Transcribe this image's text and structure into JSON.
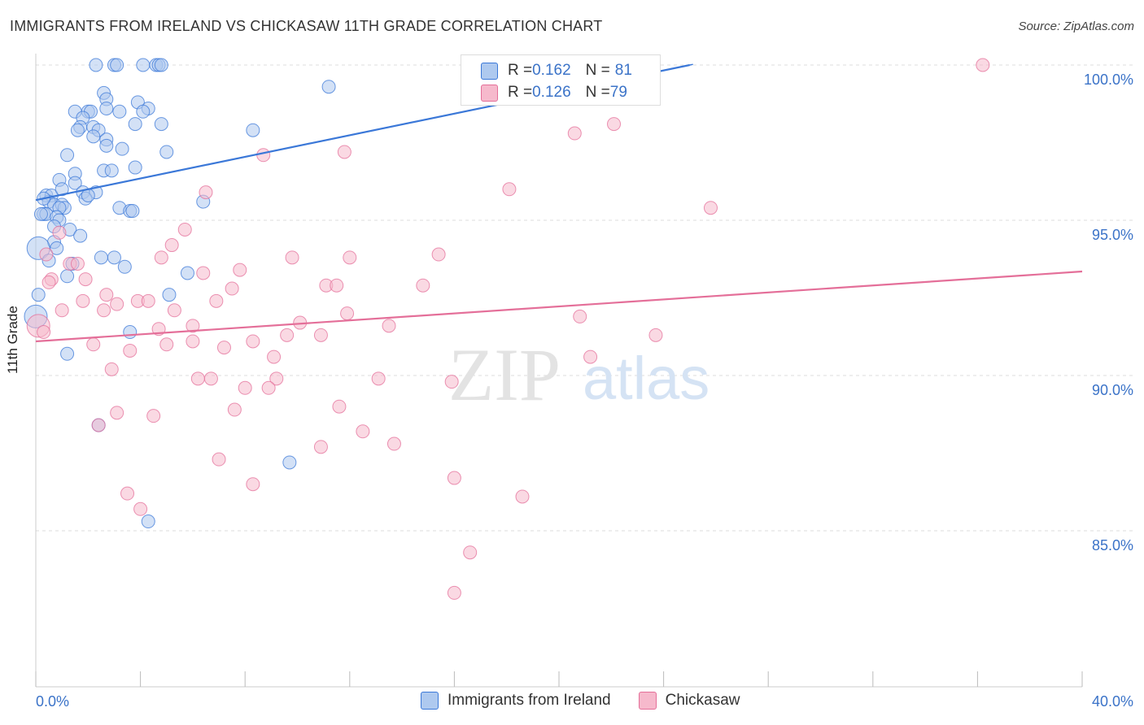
{
  "title": "IMMIGRANTS FROM IRELAND VS CHICKASAW 11TH GRADE CORRELATION CHART",
  "source": "Source: ZipAtlas.com",
  "watermark": {
    "zip": "ZIP",
    "atlas": "atlas"
  },
  "legend_top": {
    "rows": [
      {
        "r_label": "R = ",
        "r_value": "0.162",
        "n_label": "N = ",
        "n_value": "81",
        "color": "#aec9ef"
      },
      {
        "r_label": "R = ",
        "r_value": "0.126",
        "n_label": "N = ",
        "n_value": "79",
        "color": "#f6b9cc"
      }
    ]
  },
  "legend_bottom": [
    {
      "label": "Immigrants from Ireland",
      "color": "#aec9ef"
    },
    {
      "label": "Chickasaw",
      "color": "#f6b9cc"
    }
  ],
  "chart_data": {
    "type": "scatter",
    "title": "IMMIGRANTS FROM IRELAND VS CHICKASAW 11TH GRADE CORRELATION CHART",
    "xlabel": "",
    "ylabel": "11th Grade",
    "x_ticks": [
      "0.0%",
      "40.0%"
    ],
    "y_ticks": [
      "100.0%",
      "95.0%",
      "90.0%",
      "85.0%"
    ],
    "xlim": [
      0,
      40
    ],
    "ylim": [
      80.4,
      100.9
    ],
    "grid": true,
    "legend": "bottom-center",
    "series": [
      {
        "name": "Immigrants from Ireland",
        "color": "#3b78d8",
        "fill": "#aec9ef",
        "trend": {
          "x": [
            0,
            25
          ],
          "y": [
            95.65,
            100.0
          ]
        },
        "points": [
          [
            2.3,
            100
          ],
          [
            3.0,
            100
          ],
          [
            3.1,
            100
          ],
          [
            4.1,
            100
          ],
          [
            4.6,
            100
          ],
          [
            4.7,
            100
          ],
          [
            4.8,
            100
          ],
          [
            11.2,
            99.3
          ],
          [
            2.6,
            99.1
          ],
          [
            2.7,
            98.9
          ],
          [
            3.9,
            98.8
          ],
          [
            1.5,
            98.5
          ],
          [
            2.0,
            98.5
          ],
          [
            2.1,
            98.5
          ],
          [
            3.2,
            98.5
          ],
          [
            2.7,
            98.6
          ],
          [
            4.3,
            98.6
          ],
          [
            4.1,
            98.5
          ],
          [
            1.8,
            98.3
          ],
          [
            1.7,
            98.0
          ],
          [
            2.2,
            98.0
          ],
          [
            2.4,
            97.9
          ],
          [
            1.6,
            97.9
          ],
          [
            3.8,
            98.1
          ],
          [
            4.8,
            98.1
          ],
          [
            8.3,
            97.9
          ],
          [
            2.2,
            97.7
          ],
          [
            2.7,
            97.6
          ],
          [
            2.7,
            97.4
          ],
          [
            3.3,
            97.3
          ],
          [
            5.0,
            97.2
          ],
          [
            1.2,
            97.1
          ],
          [
            3.8,
            96.7
          ],
          [
            2.6,
            96.6
          ],
          [
            2.9,
            96.6
          ],
          [
            1.5,
            96.5
          ],
          [
            0.9,
            96.3
          ],
          [
            1.5,
            96.2
          ],
          [
            1.8,
            95.9
          ],
          [
            2.3,
            95.9
          ],
          [
            0.4,
            95.8
          ],
          [
            0.6,
            95.8
          ],
          [
            1.9,
            95.7
          ],
          [
            6.4,
            95.6
          ],
          [
            0.5,
            95.6
          ],
          [
            0.7,
            95.5
          ],
          [
            1.0,
            95.5
          ],
          [
            1.1,
            95.4
          ],
          [
            0.9,
            95.4
          ],
          [
            3.2,
            95.4
          ],
          [
            3.6,
            95.3
          ],
          [
            3.7,
            95.3
          ],
          [
            0.3,
            95.2
          ],
          [
            0.4,
            95.2
          ],
          [
            0.8,
            95.1
          ],
          [
            0.9,
            95.0
          ],
          [
            0.7,
            94.8
          ],
          [
            1.3,
            94.7
          ],
          [
            1.7,
            94.5
          ],
          [
            0.7,
            94.3
          ],
          [
            0.1,
            94.1
          ],
          [
            0.8,
            94.1
          ],
          [
            2.5,
            93.8
          ],
          [
            3.0,
            93.8
          ],
          [
            1.4,
            93.6
          ],
          [
            3.4,
            93.5
          ],
          [
            5.8,
            93.3
          ],
          [
            1.2,
            93.2
          ],
          [
            0.1,
            92.6
          ],
          [
            5.1,
            92.6
          ],
          [
            0.0,
            91.9
          ],
          [
            3.6,
            91.4
          ],
          [
            1.2,
            90.7
          ],
          [
            2.4,
            88.4
          ],
          [
            9.7,
            87.2
          ],
          [
            4.3,
            85.3
          ],
          [
            0.2,
            95.2
          ],
          [
            0.3,
            95.7
          ],
          [
            1.0,
            96.0
          ],
          [
            2.0,
            95.8
          ],
          [
            0.5,
            93.7
          ]
        ]
      },
      {
        "name": "Chickasaw",
        "color": "#e46f99",
        "fill": "#f6b9cc",
        "trend": {
          "x": [
            0,
            40
          ],
          "y": [
            91.1,
            93.35
          ]
        },
        "points": [
          [
            36.2,
            100
          ],
          [
            22.1,
            98.1
          ],
          [
            20.6,
            97.8
          ],
          [
            8.7,
            97.1
          ],
          [
            11.8,
            97.2
          ],
          [
            6.5,
            95.9
          ],
          [
            18.1,
            96.0
          ],
          [
            25.8,
            95.4
          ],
          [
            5.7,
            94.7
          ],
          [
            0.9,
            94.6
          ],
          [
            5.2,
            94.2
          ],
          [
            15.4,
            93.9
          ],
          [
            4.8,
            93.8
          ],
          [
            9.8,
            93.8
          ],
          [
            12.0,
            93.8
          ],
          [
            1.3,
            93.6
          ],
          [
            1.6,
            93.6
          ],
          [
            7.8,
            93.4
          ],
          [
            6.4,
            93.3
          ],
          [
            0.6,
            93.1
          ],
          [
            1.9,
            93.1
          ],
          [
            0.5,
            93.0
          ],
          [
            0.4,
            93.9
          ],
          [
            11.1,
            92.9
          ],
          [
            11.5,
            92.9
          ],
          [
            14.8,
            92.9
          ],
          [
            7.5,
            92.8
          ],
          [
            2.7,
            92.6
          ],
          [
            6.9,
            92.4
          ],
          [
            1.8,
            92.4
          ],
          [
            3.1,
            92.3
          ],
          [
            3.9,
            92.4
          ],
          [
            4.3,
            92.4
          ],
          [
            1.0,
            92.1
          ],
          [
            2.6,
            92.1
          ],
          [
            5.3,
            92.1
          ],
          [
            11.9,
            92.0
          ],
          [
            20.8,
            91.9
          ],
          [
            10.1,
            91.7
          ],
          [
            13.5,
            91.6
          ],
          [
            6.0,
            91.6
          ],
          [
            4.7,
            91.5
          ],
          [
            9.6,
            91.3
          ],
          [
            10.9,
            91.3
          ],
          [
            23.7,
            91.3
          ],
          [
            5.0,
            91.0
          ],
          [
            6.0,
            91.1
          ],
          [
            8.3,
            91.1
          ],
          [
            2.2,
            91.0
          ],
          [
            7.2,
            90.9
          ],
          [
            3.6,
            90.8
          ],
          [
            9.1,
            90.6
          ],
          [
            21.2,
            90.6
          ],
          [
            2.9,
            90.2
          ],
          [
            6.2,
            89.9
          ],
          [
            6.7,
            89.9
          ],
          [
            9.2,
            89.9
          ],
          [
            13.1,
            89.9
          ],
          [
            15.9,
            89.8
          ],
          [
            8.0,
            89.6
          ],
          [
            8.9,
            89.6
          ],
          [
            11.6,
            89.0
          ],
          [
            7.6,
            88.9
          ],
          [
            3.1,
            88.8
          ],
          [
            4.5,
            88.7
          ],
          [
            2.4,
            88.4
          ],
          [
            12.5,
            88.2
          ],
          [
            13.7,
            87.8
          ],
          [
            10.9,
            87.7
          ],
          [
            7.0,
            87.3
          ],
          [
            16.0,
            86.7
          ],
          [
            8.3,
            86.5
          ],
          [
            3.5,
            86.2
          ],
          [
            18.6,
            86.1
          ],
          [
            4.0,
            85.7
          ],
          [
            16.6,
            84.3
          ],
          [
            16.0,
            83.0
          ],
          [
            0.1,
            91.6
          ],
          [
            0.3,
            91.4
          ]
        ]
      }
    ]
  }
}
